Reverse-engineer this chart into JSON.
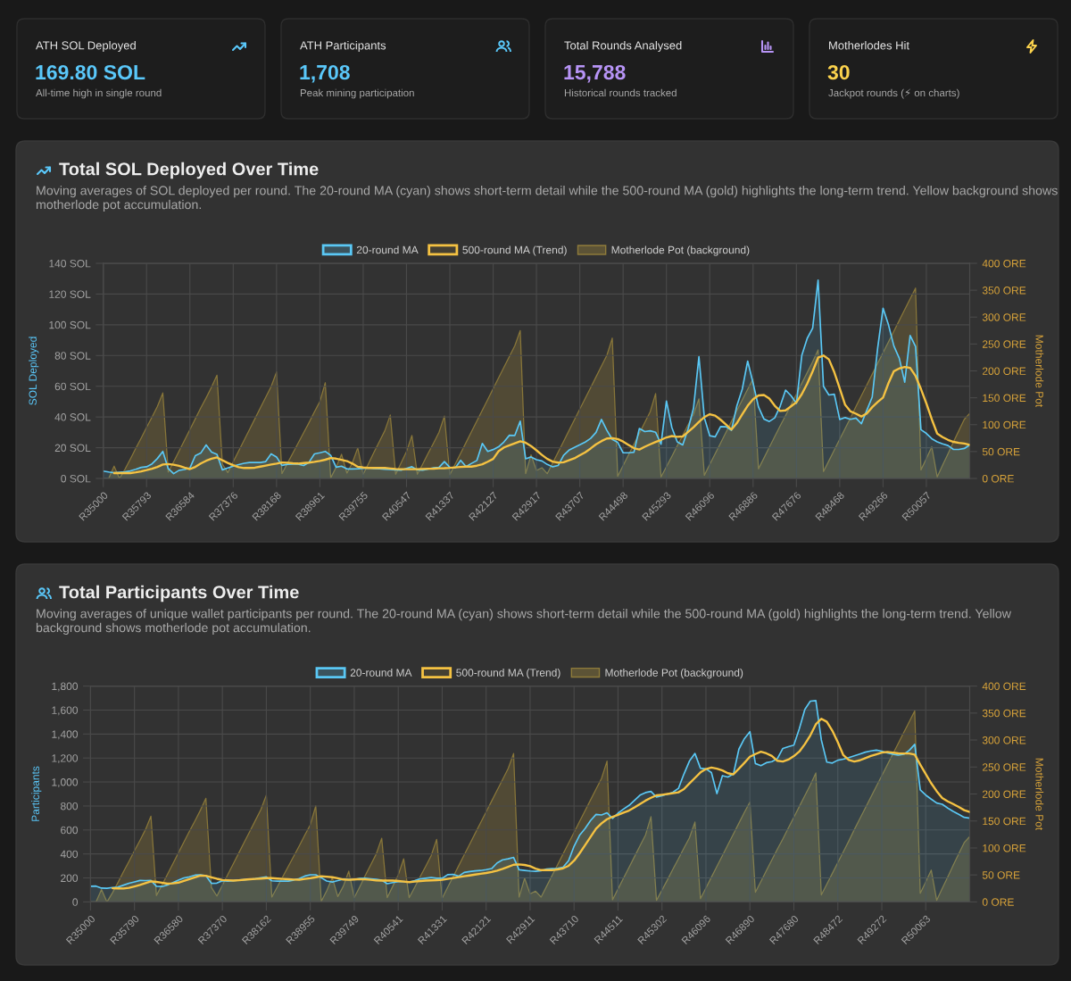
{
  "chart_data": [
    {
      "type": "other",
      "title": "ATH SOL Deployed",
      "subtitle": "169.80 SOL",
      "annotations": [
        "All-time high in single round"
      ],
      "color": "#5ac8fa"
    },
    {
      "type": "other",
      "title": "ATH Participants",
      "subtitle": "1,708",
      "annotations": [
        "Peak mining participation"
      ],
      "color": "#5ac8fa"
    },
    {
      "type": "other",
      "title": "Total Rounds Analysed",
      "subtitle": "15,788",
      "annotations": [
        "Historical rounds tracked"
      ],
      "color": "#b794f6"
    },
    {
      "type": "other",
      "title": "Motherlodes Hit",
      "subtitle": "30",
      "annotations": [
        "Jackpot rounds (⚡ on charts)"
      ],
      "color": "#fcd34d"
    },
    {
      "type": "line",
      "title": "Total SOL Deployed Over Time",
      "subtitle": "Moving averages of SOL deployed per round. The 20-round MA (cyan) shows short-term detail while the 500-round MA (gold) highlights the long-term trend. Yellow background shows motherlode pot accumulation.",
      "ylabel": "SOL Deployed",
      "y2label": "Motherlode Pot",
      "grid": true,
      "legend": "top",
      "categories": [
        "R35000",
        null,
        null,
        null,
        null,
        null,
        null,
        null,
        "R35793",
        null,
        null,
        null,
        null,
        null,
        null,
        null,
        "R36584",
        null,
        null,
        null,
        null,
        null,
        null,
        null,
        "R37376",
        null,
        null,
        null,
        null,
        null,
        null,
        null,
        "R38168",
        null,
        null,
        null,
        null,
        null,
        null,
        null,
        "R38961",
        null,
        null,
        null,
        null,
        null,
        null,
        null,
        "R39755",
        null,
        null,
        null,
        null,
        null,
        null,
        null,
        "R40547",
        null,
        null,
        null,
        null,
        null,
        null,
        null,
        "R41337",
        null,
        null,
        null,
        null,
        null,
        null,
        null,
        "R42127",
        null,
        null,
        null,
        null,
        null,
        null,
        null,
        "R42917",
        null,
        null,
        null,
        null,
        null,
        null,
        null,
        "R43707",
        null,
        null,
        null,
        null,
        null,
        null,
        null,
        "R44498",
        null,
        null,
        null,
        null,
        null,
        null,
        null,
        "R45293",
        null,
        null,
        null,
        null,
        null,
        null,
        null,
        "R46096",
        null,
        null,
        null,
        null,
        null,
        null,
        null,
        "R46886",
        null,
        null,
        null,
        null,
        null,
        null,
        null,
        "R47676",
        null,
        null,
        null,
        null,
        null,
        null,
        null,
        "R48468",
        null,
        null,
        null,
        null,
        null,
        null,
        null,
        "R49266",
        null,
        null,
        null,
        null,
        null,
        null,
        null,
        "R50057",
        null,
        null,
        null,
        null,
        null,
        null,
        null,
        null
      ],
      "ylim": [
        0,
        140
      ],
      "yticks": [
        {
          "value": 0,
          "label": "0 SOL"
        },
        {
          "value": 20,
          "label": "20 SOL"
        },
        {
          "value": 40,
          "label": "40 SOL"
        },
        {
          "value": 60,
          "label": "60 SOL"
        },
        {
          "value": 80,
          "label": "80 SOL"
        },
        {
          "value": 100,
          "label": "100 SOL"
        },
        {
          "value": 120,
          "label": "120 SOL"
        },
        {
          "value": 140,
          "label": "140 SOL"
        }
      ],
      "y2lim": [
        0,
        400
      ],
      "y2ticks": [
        {
          "value": 0,
          "label": "0 ORE"
        },
        {
          "value": 50,
          "label": "50 ORE"
        },
        {
          "value": 100,
          "label": "100 ORE"
        },
        {
          "value": 150,
          "label": "150 ORE"
        },
        {
          "value": 200,
          "label": "200 ORE"
        },
        {
          "value": 250,
          "label": "250 ORE"
        },
        {
          "value": 300,
          "label": "300 ORE"
        },
        {
          "value": 350,
          "label": "350 ORE"
        },
        {
          "value": 400,
          "label": "400 ORE"
        }
      ],
      "series": [
        {
          "name": "20-round MA",
          "type": "area",
          "color": "#5ac8f5",
          "values": [
            4.8,
            4.2,
            3.7,
            4.0,
            4.3,
            4.9,
            6.0,
            7.2,
            7.6,
            9.5,
            13.0,
            17.6,
            6.4,
            3.1,
            5.3,
            5.8,
            6.8,
            14.8,
            16.5,
            21.8,
            17.1,
            15.7,
            5.6,
            6.8,
            8.0,
            9.0,
            9.9,
            10.4,
            10.4,
            10.4,
            11.0,
            16.0,
            13.9,
            8.5,
            9.2,
            9.3,
            9.3,
            8.4,
            10.5,
            16.0,
            16.7,
            17.6,
            15.0,
            7.3,
            8.0,
            6.2,
            6.2,
            6.3,
            6.6,
            6.8,
            6.5,
            6.3,
            6.0,
            5.8,
            5.5,
            5.4,
            6.5,
            7.6,
            5.6,
            5.4,
            6.2,
            6.9,
            7.2,
            11.0,
            7.2,
            6.9,
            11.8,
            7.7,
            9.8,
            11.7,
            22.8,
            17.6,
            18.8,
            20.6,
            23.8,
            28.1,
            28.0,
            37.3,
            12.8,
            14.0,
            12.2,
            11.4,
            9.1,
            7.6,
            8.4,
            15.0,
            18.4,
            20.2,
            21.9,
            23.7,
            26.1,
            30.0,
            38.4,
            31.3,
            25.4,
            23.5,
            16.7,
            16.7,
            17.1,
            32.5,
            30.5,
            31.0,
            30.1,
            22.3,
            50.3,
            33.1,
            23.8,
            21.8,
            32.2,
            45.7,
            79.3,
            39.5,
            27.8,
            27.1,
            33.8,
            33.6,
            31.3,
            47.2,
            58.1,
            76.4,
            62.0,
            46.5,
            38.7,
            37.1,
            39.4,
            47.0,
            57.5,
            53.9,
            48.9,
            80.2,
            91.2,
            97.8,
            129.1,
            60.0,
            54.3,
            54.8,
            38.4,
            39.6,
            38.5,
            39.3,
            35.6,
            44.4,
            53.0,
            84.7,
            110.8,
            100.0,
            86.2,
            78.2,
            62.7,
            93.0,
            85.9,
            31.7,
            29.3,
            25.9,
            23.8,
            22.5,
            21.4,
            18.9,
            18.9,
            19.5,
            21.8
          ]
        },
        {
          "name": "500-round MA (Trend)",
          "color": "#f5c242",
          "values": [
            null,
            null,
            3.5,
            3.5,
            3.5,
            3.5,
            4.0,
            4.6,
            5.4,
            6.3,
            7.5,
            9.1,
            9.4,
            8.9,
            8.2,
            7.1,
            6.1,
            7.5,
            9.7,
            11.5,
            12.8,
            13.7,
            11.8,
            10.1,
            8.6,
            7.3,
            6.8,
            6.8,
            7.0,
            7.7,
            8.4,
            9.1,
            9.7,
            10.4,
            10.2,
            9.9,
            9.7,
            10.0,
            10.3,
            10.8,
            11.4,
            12.2,
            13.3,
            12.9,
            12.1,
            11.3,
            9.7,
            7.6,
            7.1,
            6.8,
            6.8,
            6.8,
            6.8,
            6.5,
            6.2,
            6.0,
            6.0,
            6.0,
            6.0,
            6.2,
            6.3,
            6.4,
            6.6,
            6.7,
            6.9,
            7.2,
            7.5,
            7.7,
            7.7,
            8.3,
            9.2,
            10.9,
            12.7,
            17.7,
            20.2,
            21.6,
            22.9,
            24.2,
            23.3,
            21.1,
            18.3,
            15.3,
            12.7,
            11.0,
            10.3,
            10.5,
            11.8,
            13.1,
            15.1,
            17.0,
            19.5,
            22.2,
            24.3,
            26.0,
            26.2,
            25.6,
            24.0,
            21.8,
            19.7,
            18.8,
            20.6,
            22.2,
            23.7,
            25.1,
            26.7,
            27.6,
            27.1,
            27.3,
            30.3,
            33.3,
            36.8,
            39.9,
            41.8,
            40.9,
            38.2,
            35.1,
            31.8,
            36.0,
            41.7,
            47.3,
            51.6,
            54.0,
            54.3,
            52.0,
            47.3,
            43.9,
            44.3,
            46.9,
            49.6,
            54.9,
            61.7,
            69.7,
            78.6,
            80.0,
            77.5,
            69.1,
            58.6,
            47.9,
            43.6,
            42.1,
            40.3,
            42.3,
            46.4,
            49.7,
            52.6,
            62.0,
            69.8,
            71.6,
            72.5,
            72.0,
            66.7,
            58.2,
            48.8,
            38.5,
            29.2,
            26.9,
            25.1,
            23.8,
            23.2,
            22.7,
            21.8
          ]
        },
        {
          "name": "Motherlode Pot (background)",
          "type": "area",
          "axis": "y2",
          "color": "#a08a3c",
          "values": [
            0,
            0,
            23,
            0,
            17,
            36,
            56,
            75,
            95,
            114,
            134,
            159,
            12,
            31,
            51,
            71,
            91,
            111,
            131,
            150,
            170,
            192,
            27,
            11,
            31,
            51,
            71,
            91,
            111,
            131,
            151,
            171,
            198,
            9,
            28,
            47,
            66,
            85,
            104,
            124,
            143,
            178,
            1,
            21,
            45,
            10,
            29,
            57,
            8,
            28,
            49,
            69,
            89,
            118,
            8,
            29,
            50,
            80,
            8,
            27,
            47,
            66,
            86,
            116,
            7,
            27,
            47,
            67,
            87,
            107,
            127,
            147,
            167,
            187,
            207,
            227,
            247,
            275,
            9,
            44,
            15,
            20,
            9,
            29,
            49,
            69,
            89,
            109,
            129,
            149,
            169,
            189,
            209,
            229,
            261,
            4,
            24,
            44,
            64,
            84,
            104,
            124,
            158,
            3,
            22,
            41,
            61,
            80,
            100,
            119,
            148,
            6,
            26,
            46,
            66,
            86,
            106,
            126,
            146,
            166,
            185,
            18,
            38,
            58,
            78,
            98,
            117,
            137,
            157,
            177,
            197,
            217,
            239,
            13,
            33,
            53,
            73,
            93,
            113,
            134,
            154,
            174,
            194,
            214,
            234,
            254,
            274,
            294,
            314,
            334,
            354,
            16,
            37,
            59,
            3,
            25,
            46,
            68,
            89,
            110,
            121
          ]
        }
      ]
    },
    {
      "type": "line",
      "title": "Total Participants Over Time",
      "subtitle": "Moving averages of unique wallet participants per round. The 20-round MA (cyan) shows short-term detail while the 500-round MA (gold) highlights the long-term trend. Yellow background shows motherlode pot accumulation.",
      "ylabel": "Participants",
      "y2label": "Motherlode Pot",
      "grid": true,
      "legend": "top",
      "categories": [
        "R35000",
        null,
        null,
        null,
        null,
        null,
        null,
        null,
        "R35790",
        null,
        null,
        null,
        null,
        null,
        null,
        null,
        "R36580",
        null,
        null,
        null,
        null,
        null,
        null,
        null,
        "R37370",
        null,
        null,
        null,
        null,
        null,
        null,
        null,
        "R38162",
        null,
        null,
        null,
        null,
        null,
        null,
        null,
        "R38955",
        null,
        null,
        null,
        null,
        null,
        null,
        null,
        "R39749",
        null,
        null,
        null,
        null,
        null,
        null,
        null,
        "R40541",
        null,
        null,
        null,
        null,
        null,
        null,
        null,
        "R41331",
        null,
        null,
        null,
        null,
        null,
        null,
        null,
        "R42121",
        null,
        null,
        null,
        null,
        null,
        null,
        null,
        "R42911",
        null,
        null,
        null,
        null,
        null,
        null,
        null,
        "R43710",
        null,
        null,
        null,
        null,
        null,
        null,
        null,
        "R44511",
        null,
        null,
        null,
        null,
        null,
        null,
        null,
        "R45302",
        null,
        null,
        null,
        null,
        null,
        null,
        null,
        "R46096",
        null,
        null,
        null,
        null,
        null,
        null,
        null,
        "R46890",
        null,
        null,
        null,
        null,
        null,
        null,
        null,
        "R47680",
        null,
        null,
        null,
        null,
        null,
        null,
        null,
        "R48472",
        null,
        null,
        null,
        null,
        null,
        null,
        null,
        "R49272",
        null,
        null,
        null,
        null,
        null,
        null,
        null,
        "R50063",
        null,
        null,
        null,
        null,
        null,
        null,
        null,
        null
      ],
      "ylim": [
        0,
        1800
      ],
      "yticks": [
        0,
        200,
        400,
        600,
        800,
        {
          "value": 1000,
          "label": "1,000"
        },
        {
          "value": 1200,
          "label": "1,200"
        },
        {
          "value": 1400,
          "label": "1,400"
        },
        {
          "value": 1600,
          "label": "1,600"
        },
        {
          "value": 1800,
          "label": "1,800"
        }
      ],
      "y2lim": [
        0,
        400
      ],
      "y2ticks": [
        {
          "value": 0,
          "label": "0 ORE"
        },
        {
          "value": 50,
          "label": "50 ORE"
        },
        {
          "value": 100,
          "label": "100 ORE"
        },
        {
          "value": 150,
          "label": "150 ORE"
        },
        {
          "value": 200,
          "label": "200 ORE"
        },
        {
          "value": 250,
          "label": "250 ORE"
        },
        {
          "value": 300,
          "label": "300 ORE"
        },
        {
          "value": 350,
          "label": "350 ORE"
        },
        {
          "value": 400,
          "label": "400 ORE"
        }
      ],
      "series": [
        {
          "name": "20-round MA",
          "type": "area",
          "color": "#5ac8f5",
          "values": [
            130,
            132,
            115,
            114,
            120,
            124,
            140,
            156,
            167,
            179,
            178,
            179,
            130,
            128,
            141,
            161,
            182,
            200,
            209,
            223,
            226,
            219,
            155,
            157,
            177,
            173,
            177,
            182,
            185,
            189,
            194,
            202,
            209,
            176,
            173,
            173,
            173,
            183,
            195,
            216,
            226,
            226,
            201,
            174,
            166,
            178,
            190,
            186,
            187,
            196,
            197,
            193,
            189,
            181,
            152,
            161,
            170,
            170,
            165,
            178,
            193,
            198,
            204,
            198,
            197,
            227,
            230,
            214,
            246,
            253,
            259,
            262,
            269,
            278,
            325,
            351,
            359,
            371,
            268,
            263,
            258,
            255,
            260,
            274,
            277,
            280,
            289,
            343,
            464,
            555,
            612,
            679,
            730,
            725,
            743,
            697,
            740,
            774,
            805,
            847,
            890,
            912,
            921,
            874,
            886,
            900,
            915,
            947,
            1067,
            1175,
            1238,
            1115,
            1109,
            1079,
            903,
            1053,
            1041,
            1067,
            1274,
            1362,
            1420,
            1154,
            1137,
            1161,
            1170,
            1195,
            1280,
            1295,
            1308,
            1446,
            1605,
            1674,
            1679,
            1351,
            1166,
            1158,
            1182,
            1190,
            1203,
            1218,
            1233,
            1249,
            1259,
            1266,
            1257,
            1242,
            1232,
            1224,
            1231,
            1264,
            1314,
            934,
            891,
            857,
            825,
            814,
            783,
            755,
            731,
            705,
            699
          ]
        },
        {
          "name": "500-round MA (Trend)",
          "color": "#f5c242",
          "values": [
            null,
            null,
            null,
            null,
            114,
            113,
            112,
            118,
            129,
            141,
            156,
            171,
            167,
            160,
            152,
            155,
            161,
            175,
            190,
            205,
            220,
            218,
            205,
            193,
            183,
            181,
            178,
            181,
            185,
            189,
            192,
            195,
            198,
            198,
            195,
            192,
            189,
            186,
            185,
            192,
            198,
            206,
            214,
            211,
            206,
            197,
            187,
            184,
            187,
            190,
            188,
            184,
            179,
            178,
            178,
            178,
            174,
            170,
            165,
            169,
            174,
            178,
            180,
            182,
            184,
            192,
            199,
            207,
            214,
            221,
            228,
            235,
            241,
            250,
            261,
            275,
            292,
            310,
            313,
            308,
            298,
            278,
            265,
            265,
            265,
            271,
            280,
            301,
            344,
            405,
            473,
            542,
            610,
            655,
            690,
            710,
            726,
            744,
            762,
            788,
            817,
            845,
            868,
            889,
            894,
            900,
            907,
            914,
            941,
            988,
            1034,
            1080,
            1108,
            1120,
            1111,
            1096,
            1073,
            1064,
            1111,
            1160,
            1211,
            1233,
            1252,
            1239,
            1217,
            1177,
            1171,
            1187,
            1216,
            1254,
            1316,
            1389,
            1481,
            1527,
            1502,
            1428,
            1332,
            1224,
            1184,
            1171,
            1181,
            1199,
            1217,
            1231,
            1245,
            1251,
            1245,
            1239,
            1238,
            1238,
            1228,
            1145,
            1066,
            989,
            923,
            867,
            839,
            816,
            792,
            765,
            751
          ]
        },
        {
          "name": "Motherlode Pot (background)",
          "type": "area",
          "axis": "y2",
          "color": "#a08a3c",
          "values": [
            0,
            0,
            23,
            0,
            17,
            36,
            56,
            75,
            95,
            114,
            134,
            159,
            12,
            31,
            51,
            71,
            91,
            111,
            131,
            150,
            170,
            192,
            27,
            11,
            31,
            51,
            71,
            91,
            111,
            131,
            151,
            171,
            198,
            9,
            28,
            47,
            66,
            85,
            104,
            124,
            143,
            178,
            1,
            21,
            45,
            10,
            29,
            57,
            8,
            28,
            49,
            69,
            89,
            118,
            8,
            29,
            50,
            80,
            8,
            27,
            47,
            66,
            86,
            116,
            7,
            27,
            47,
            67,
            87,
            107,
            127,
            147,
            167,
            187,
            207,
            227,
            247,
            275,
            9,
            44,
            15,
            20,
            9,
            29,
            49,
            69,
            89,
            109,
            129,
            149,
            169,
            189,
            209,
            229,
            261,
            4,
            24,
            44,
            64,
            84,
            104,
            124,
            158,
            3,
            22,
            41,
            61,
            80,
            100,
            119,
            148,
            6,
            26,
            46,
            66,
            86,
            106,
            126,
            146,
            166,
            185,
            18,
            38,
            58,
            78,
            98,
            117,
            137,
            157,
            177,
            197,
            217,
            239,
            13,
            33,
            53,
            73,
            93,
            113,
            134,
            154,
            174,
            194,
            214,
            234,
            254,
            274,
            294,
            314,
            334,
            354,
            16,
            37,
            59,
            3,
            25,
            46,
            68,
            89,
            110,
            121
          ]
        }
      ]
    }
  ]
}
